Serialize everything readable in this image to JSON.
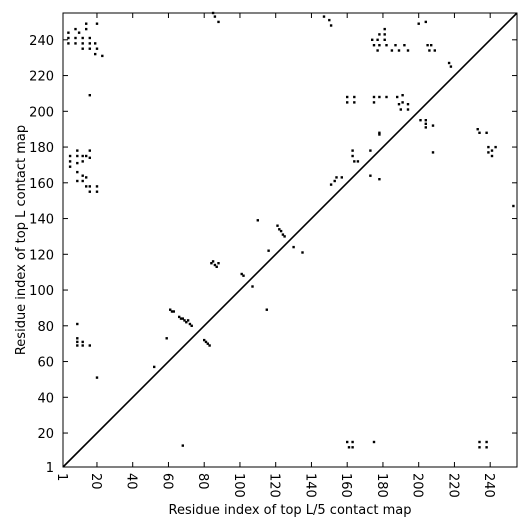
{
  "chart_data": {
    "type": "scatter",
    "title": "",
    "xlabel": "Residue index of top L/5 contact map",
    "ylabel": "Residue index of top L contact map",
    "xlim": [
      1,
      255
    ],
    "ylim": [
      1,
      255
    ],
    "xticks": [
      1,
      20,
      40,
      60,
      80,
      100,
      120,
      140,
      160,
      180,
      200,
      220,
      240
    ],
    "yticks": [
      1,
      20,
      40,
      60,
      80,
      100,
      120,
      140,
      160,
      180,
      200,
      220,
      240
    ],
    "xticklabels": [
      "1",
      "20",
      "40",
      "60",
      "80",
      "100",
      "120",
      "140",
      "160",
      "180",
      "200",
      "220",
      "240"
    ],
    "yticklabels": [
      "1",
      "20",
      "40",
      "60",
      "80",
      "100",
      "120",
      "140",
      "160",
      "180",
      "200",
      "220",
      "240"
    ],
    "grid": false,
    "diagonal": [
      [
        1,
        1
      ],
      [
        255,
        255
      ]
    ],
    "upper_points": [
      [
        4,
        238
      ],
      [
        4,
        241
      ],
      [
        4,
        244
      ],
      [
        8,
        238
      ],
      [
        8,
        241
      ],
      [
        8,
        246
      ],
      [
        10,
        244
      ],
      [
        12,
        238
      ],
      [
        12,
        241
      ],
      [
        12,
        235
      ],
      [
        14,
        246
      ],
      [
        14,
        249
      ],
      [
        16,
        241
      ],
      [
        16,
        238
      ],
      [
        16,
        235
      ],
      [
        19,
        238
      ],
      [
        20,
        235
      ],
      [
        19,
        232
      ],
      [
        20,
        249
      ],
      [
        23,
        231
      ],
      [
        5,
        175
      ],
      [
        5,
        172
      ],
      [
        5,
        169
      ],
      [
        9,
        178
      ],
      [
        9,
        175
      ],
      [
        9,
        171
      ],
      [
        9,
        166
      ],
      [
        9,
        161
      ],
      [
        12,
        175
      ],
      [
        12,
        172
      ],
      [
        12,
        164
      ],
      [
        12,
        161
      ],
      [
        14,
        175
      ],
      [
        14,
        163
      ],
      [
        14,
        158
      ],
      [
        16,
        178
      ],
      [
        16,
        174
      ],
      [
        16,
        158
      ],
      [
        16,
        155
      ],
      [
        20,
        158
      ],
      [
        20,
        155
      ],
      [
        16,
        209
      ],
      [
        9,
        81
      ],
      [
        9,
        73
      ],
      [
        9,
        71
      ],
      [
        9,
        69
      ],
      [
        12,
        71
      ],
      [
        12,
        69
      ],
      [
        16,
        69
      ],
      [
        20,
        51
      ],
      [
        52,
        57
      ],
      [
        59,
        73
      ],
      [
        61,
        89
      ],
      [
        62,
        88
      ],
      [
        63,
        88
      ],
      [
        66,
        85
      ],
      [
        67,
        84
      ],
      [
        68,
        84
      ],
      [
        69,
        83
      ],
      [
        70,
        82
      ],
      [
        71,
        83
      ],
      [
        72,
        81
      ],
      [
        73,
        80
      ],
      [
        80,
        72
      ],
      [
        81,
        71
      ],
      [
        82,
        70
      ],
      [
        83,
        69
      ],
      [
        68,
        13
      ],
      [
        84,
        115
      ],
      [
        85,
        116
      ],
      [
        86,
        114
      ],
      [
        87,
        113
      ],
      [
        88,
        115
      ],
      [
        85,
        255
      ],
      [
        86,
        253
      ],
      [
        88,
        250
      ],
      [
        101,
        109
      ],
      [
        102,
        108
      ],
      [
        107,
        102
      ],
      [
        110,
        139
      ],
      [
        115,
        89
      ],
      [
        116,
        122
      ],
      [
        121,
        136
      ],
      [
        122,
        134
      ],
      [
        123,
        133
      ],
      [
        124,
        131
      ],
      [
        125,
        130
      ],
      [
        130,
        124
      ],
      [
        135,
        121
      ],
      [
        147,
        253
      ],
      [
        150,
        251
      ],
      [
        151,
        248
      ],
      [
        151,
        159
      ],
      [
        153,
        161
      ],
      [
        154,
        163
      ],
      [
        157,
        163
      ],
      [
        160,
        15
      ],
      [
        160,
        205
      ],
      [
        160,
        208
      ],
      [
        161,
        12
      ],
      [
        163,
        15
      ],
      [
        163,
        12
      ],
      [
        163,
        178
      ],
      [
        163,
        175
      ],
      [
        164,
        205
      ],
      [
        164,
        208
      ],
      [
        164,
        172
      ],
      [
        166,
        172
      ],
      [
        173,
        178
      ],
      [
        173,
        164
      ],
      [
        174,
        240
      ],
      [
        175,
        15
      ],
      [
        175,
        205
      ],
      [
        175,
        208
      ],
      [
        175,
        237
      ],
      [
        177,
        240
      ],
      [
        177,
        234
      ],
      [
        178,
        187
      ],
      [
        178,
        188
      ],
      [
        178,
        162
      ],
      [
        178,
        208
      ],
      [
        178,
        243
      ],
      [
        178,
        237
      ],
      [
        181,
        240
      ],
      [
        181,
        243
      ],
      [
        181,
        246
      ],
      [
        182,
        237
      ],
      [
        182,
        208
      ],
      [
        185,
        234
      ],
      [
        187,
        237
      ],
      [
        188,
        208
      ],
      [
        189,
        204
      ],
      [
        189,
        234
      ],
      [
        190,
        201
      ],
      [
        191,
        209
      ],
      [
        191,
        205
      ],
      [
        192,
        237
      ],
      [
        194,
        201
      ],
      [
        194,
        204
      ],
      [
        194,
        234
      ],
      [
        200,
        249
      ],
      [
        201,
        195
      ],
      [
        204,
        193
      ],
      [
        204,
        191
      ],
      [
        204,
        250
      ],
      [
        204,
        195
      ],
      [
        205,
        237
      ],
      [
        206,
        234
      ],
      [
        207,
        237
      ],
      [
        208,
        177
      ],
      [
        208,
        192
      ],
      [
        209,
        234
      ],
      [
        217,
        227
      ],
      [
        218,
        225
      ],
      [
        233,
        190
      ],
      [
        234,
        188
      ],
      [
        234,
        15
      ],
      [
        234,
        12
      ],
      [
        238,
        15
      ],
      [
        238,
        12
      ],
      [
        238,
        188
      ],
      [
        239,
        180
      ],
      [
        239,
        177
      ],
      [
        241,
        178
      ],
      [
        241,
        175
      ],
      [
        243,
        180
      ],
      [
        253,
        147
      ]
    ]
  }
}
